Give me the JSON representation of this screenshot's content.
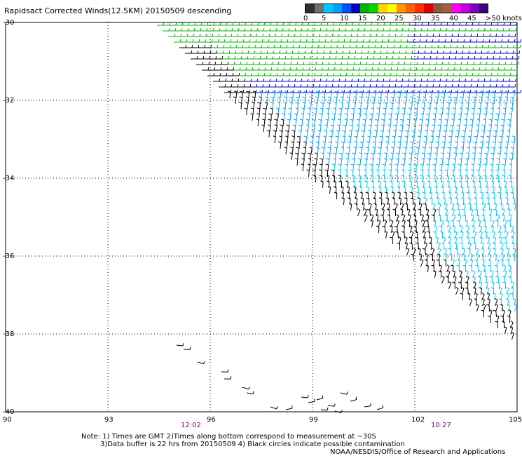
{
  "title": "Rapidsact Corrected Winds(12.5KM) 20150509 descending",
  "legend": {
    "labels": [
      "0",
      "5",
      "10",
      "15",
      "20",
      "25",
      "30",
      "35",
      "40",
      "45",
      ">50 knots"
    ],
    "colors": [
      "#303030",
      "#707070",
      "#00c8ff",
      "#00a0ff",
      "#0050ff",
      "#0000c8",
      "#00b400",
      "#00d800",
      "#ffd700",
      "#ffff00",
      "#ff9600",
      "#ff6000",
      "#ff3000",
      "#e00000",
      "#8b5a3c",
      "#a06040",
      "#ff00ff",
      "#c000e0",
      "#8000c0",
      "#400080"
    ]
  },
  "axes": {
    "lat_labels": [
      "-30",
      "-32",
      "-34",
      "-36",
      "-38",
      "-40"
    ],
    "lon_labels": [
      "90",
      "93",
      "96",
      "99",
      "102",
      "105"
    ]
  },
  "times": [
    "12:02",
    "10:27"
  ],
  "notes": {
    "line1": "Note: 1) Times are GMT 2)Times along bottom correspond to measurement at ~30S",
    "line2": "3)Data buffer is 22 hrs from 20150509 4) Black circles indicate possible contamination",
    "credit": "NOAA/NESDIS/Office of Research and Applications"
  }
}
